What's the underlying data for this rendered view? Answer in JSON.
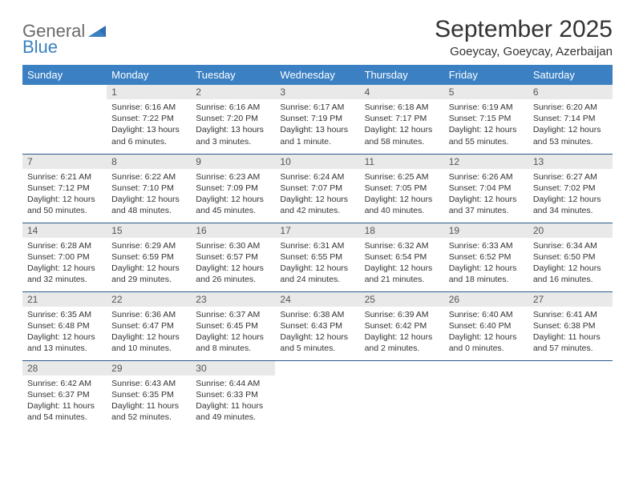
{
  "logo": {
    "word1": "General",
    "word2": "Blue"
  },
  "title": "September 2025",
  "location": "Goeycay, Goeycay, Azerbaijan",
  "colors": {
    "header_bg": "#3a80c3",
    "header_text": "#ffffff",
    "daynum_bg": "#e9e9e9",
    "row_border": "#2a5a8a",
    "text": "#333333",
    "logo_gray": "#6a6a6a",
    "logo_blue": "#3a80c3"
  },
  "weekdays": [
    "Sunday",
    "Monday",
    "Tuesday",
    "Wednesday",
    "Thursday",
    "Friday",
    "Saturday"
  ],
  "weeks": [
    [
      null,
      {
        "n": "1",
        "sr": "6:16 AM",
        "ss": "7:22 PM",
        "dl": "13 hours and 6 minutes."
      },
      {
        "n": "2",
        "sr": "6:16 AM",
        "ss": "7:20 PM",
        "dl": "13 hours and 3 minutes."
      },
      {
        "n": "3",
        "sr": "6:17 AM",
        "ss": "7:19 PM",
        "dl": "13 hours and 1 minute."
      },
      {
        "n": "4",
        "sr": "6:18 AM",
        "ss": "7:17 PM",
        "dl": "12 hours and 58 minutes."
      },
      {
        "n": "5",
        "sr": "6:19 AM",
        "ss": "7:15 PM",
        "dl": "12 hours and 55 minutes."
      },
      {
        "n": "6",
        "sr": "6:20 AM",
        "ss": "7:14 PM",
        "dl": "12 hours and 53 minutes."
      }
    ],
    [
      {
        "n": "7",
        "sr": "6:21 AM",
        "ss": "7:12 PM",
        "dl": "12 hours and 50 minutes."
      },
      {
        "n": "8",
        "sr": "6:22 AM",
        "ss": "7:10 PM",
        "dl": "12 hours and 48 minutes."
      },
      {
        "n": "9",
        "sr": "6:23 AM",
        "ss": "7:09 PM",
        "dl": "12 hours and 45 minutes."
      },
      {
        "n": "10",
        "sr": "6:24 AM",
        "ss": "7:07 PM",
        "dl": "12 hours and 42 minutes."
      },
      {
        "n": "11",
        "sr": "6:25 AM",
        "ss": "7:05 PM",
        "dl": "12 hours and 40 minutes."
      },
      {
        "n": "12",
        "sr": "6:26 AM",
        "ss": "7:04 PM",
        "dl": "12 hours and 37 minutes."
      },
      {
        "n": "13",
        "sr": "6:27 AM",
        "ss": "7:02 PM",
        "dl": "12 hours and 34 minutes."
      }
    ],
    [
      {
        "n": "14",
        "sr": "6:28 AM",
        "ss": "7:00 PM",
        "dl": "12 hours and 32 minutes."
      },
      {
        "n": "15",
        "sr": "6:29 AM",
        "ss": "6:59 PM",
        "dl": "12 hours and 29 minutes."
      },
      {
        "n": "16",
        "sr": "6:30 AM",
        "ss": "6:57 PM",
        "dl": "12 hours and 26 minutes."
      },
      {
        "n": "17",
        "sr": "6:31 AM",
        "ss": "6:55 PM",
        "dl": "12 hours and 24 minutes."
      },
      {
        "n": "18",
        "sr": "6:32 AM",
        "ss": "6:54 PM",
        "dl": "12 hours and 21 minutes."
      },
      {
        "n": "19",
        "sr": "6:33 AM",
        "ss": "6:52 PM",
        "dl": "12 hours and 18 minutes."
      },
      {
        "n": "20",
        "sr": "6:34 AM",
        "ss": "6:50 PM",
        "dl": "12 hours and 16 minutes."
      }
    ],
    [
      {
        "n": "21",
        "sr": "6:35 AM",
        "ss": "6:48 PM",
        "dl": "12 hours and 13 minutes."
      },
      {
        "n": "22",
        "sr": "6:36 AM",
        "ss": "6:47 PM",
        "dl": "12 hours and 10 minutes."
      },
      {
        "n": "23",
        "sr": "6:37 AM",
        "ss": "6:45 PM",
        "dl": "12 hours and 8 minutes."
      },
      {
        "n": "24",
        "sr": "6:38 AM",
        "ss": "6:43 PM",
        "dl": "12 hours and 5 minutes."
      },
      {
        "n": "25",
        "sr": "6:39 AM",
        "ss": "6:42 PM",
        "dl": "12 hours and 2 minutes."
      },
      {
        "n": "26",
        "sr": "6:40 AM",
        "ss": "6:40 PM",
        "dl": "12 hours and 0 minutes."
      },
      {
        "n": "27",
        "sr": "6:41 AM",
        "ss": "6:38 PM",
        "dl": "11 hours and 57 minutes."
      }
    ],
    [
      {
        "n": "28",
        "sr": "6:42 AM",
        "ss": "6:37 PM",
        "dl": "11 hours and 54 minutes."
      },
      {
        "n": "29",
        "sr": "6:43 AM",
        "ss": "6:35 PM",
        "dl": "11 hours and 52 minutes."
      },
      {
        "n": "30",
        "sr": "6:44 AM",
        "ss": "6:33 PM",
        "dl": "11 hours and 49 minutes."
      },
      null,
      null,
      null,
      null
    ]
  ],
  "labels": {
    "sunrise": "Sunrise:",
    "sunset": "Sunset:",
    "daylight": "Daylight:"
  }
}
